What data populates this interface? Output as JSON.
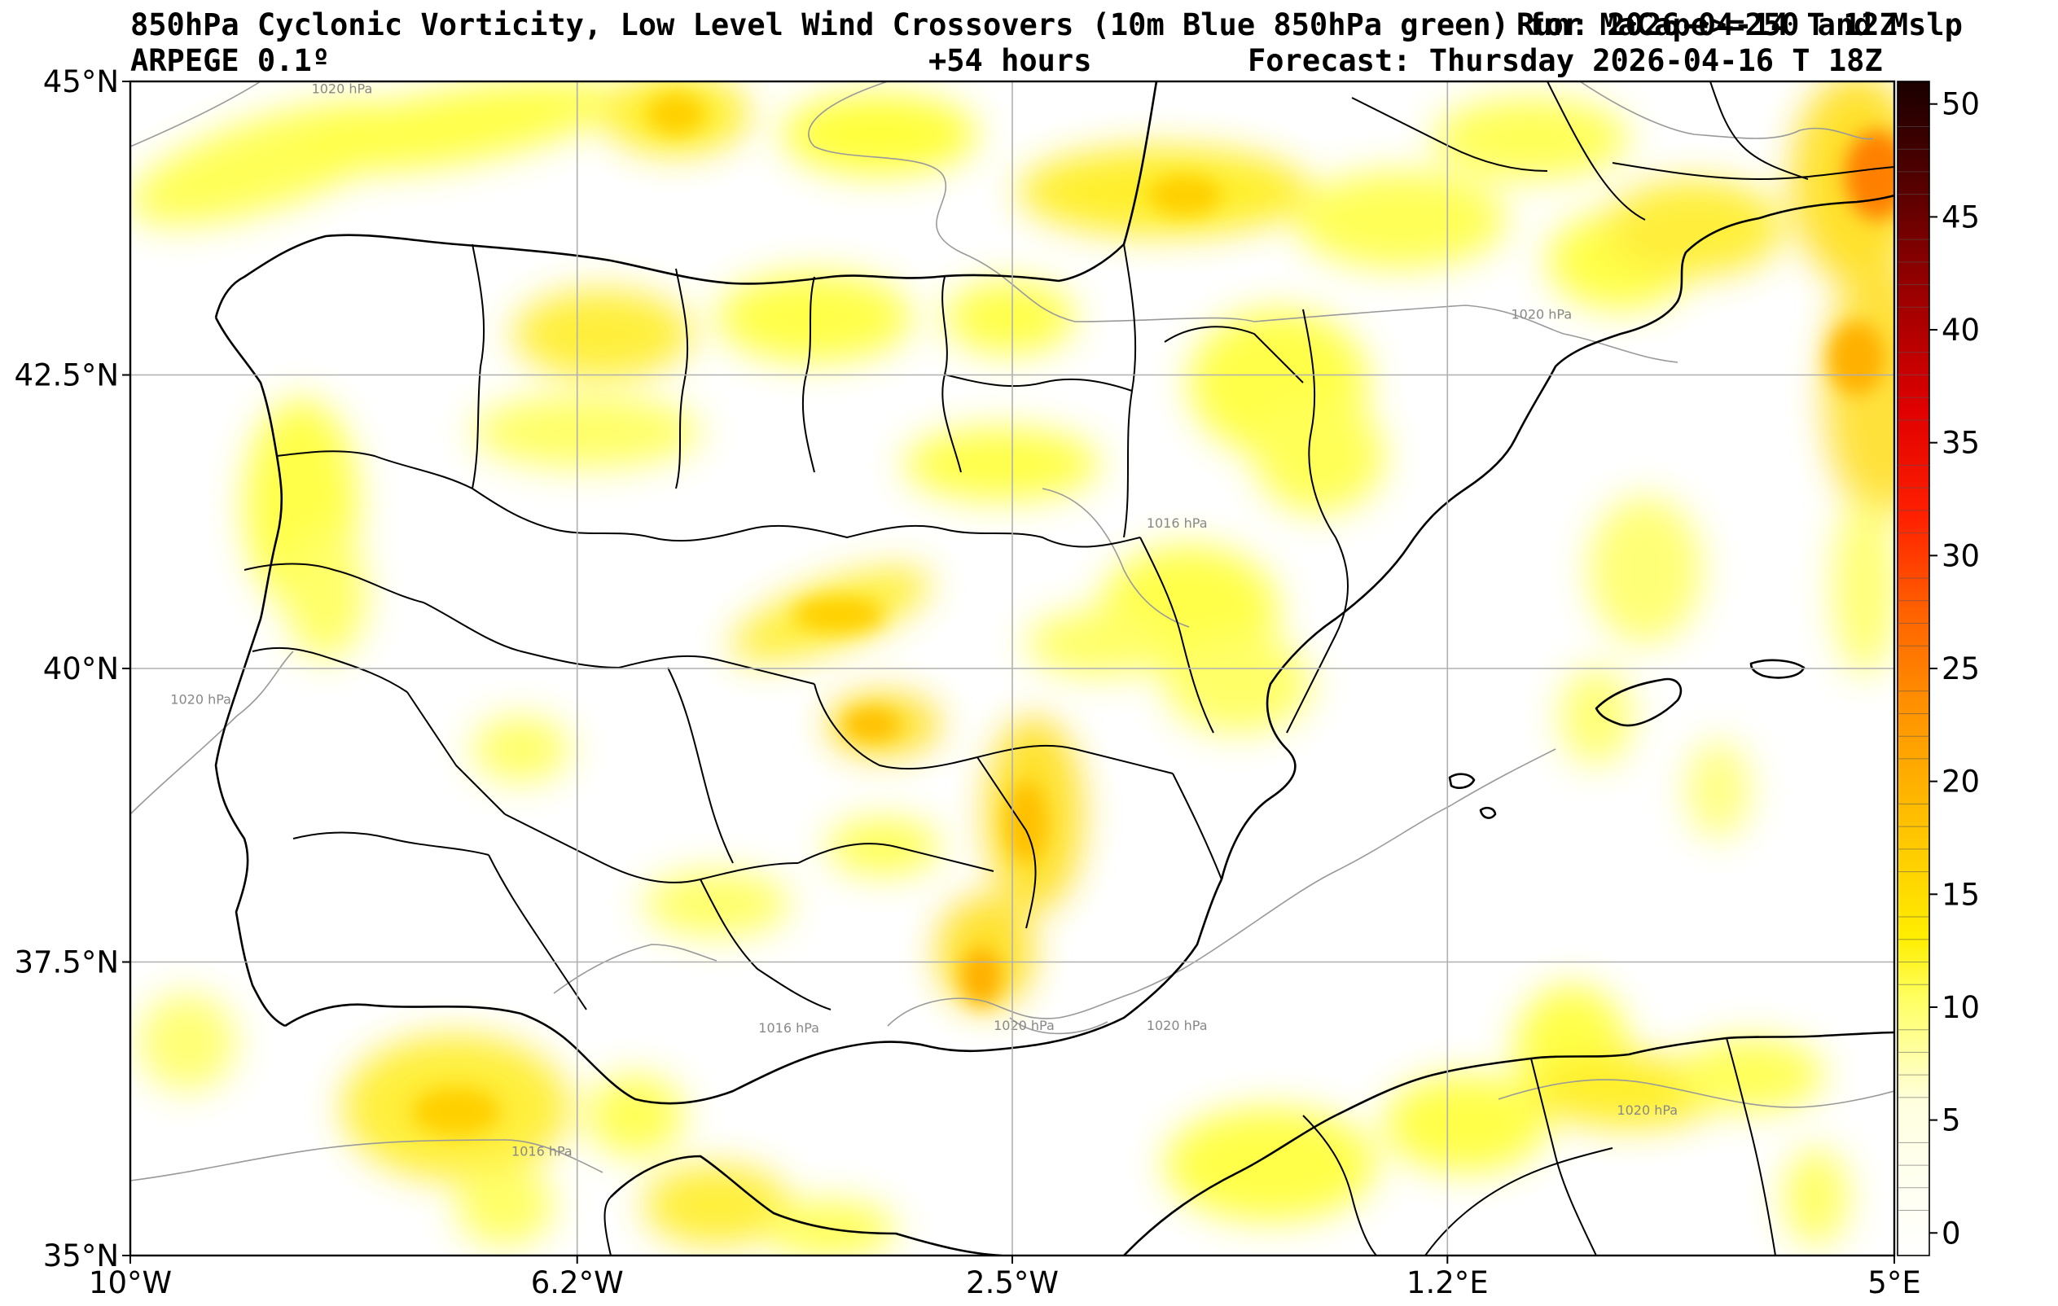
{
  "header": {
    "title": "850hPa Cyclonic Vorticity, Low Level Wind Crossovers (10m Blue 850hPa green) for MaCape>=250 and Mslp",
    "run": "Run: 2026-04-14 T 12Z",
    "model": "ARPEGE 0.1º",
    "lead": "+54 hours",
    "forecast": "Forecast: Thursday 2026-04-16 T 18Z"
  },
  "map": {
    "region": "Iberian Peninsula and Western Mediterranean",
    "lon_range": [
      -10,
      5
    ],
    "lat_range": [
      35,
      45
    ],
    "lat_ticks": [
      {
        "value": 45,
        "label": "45°N"
      },
      {
        "value": 42.5,
        "label": "42.5°N"
      },
      {
        "value": 40,
        "label": "40°N"
      },
      {
        "value": 37.5,
        "label": "37.5°N"
      },
      {
        "value": 35,
        "label": "35°N"
      }
    ],
    "lon_ticks": [
      {
        "value": -10,
        "label": "10°W"
      },
      {
        "value": -6.2,
        "label": "6.2°W"
      },
      {
        "value": -2.5,
        "label": "2.5°W"
      },
      {
        "value": 1.2,
        "label": "1.2°E"
      },
      {
        "value": 5,
        "label": "5°E"
      }
    ],
    "isobars": [
      {
        "label": "1020 hPa",
        "lon": -8.2,
        "lat": 44.9
      },
      {
        "label": "1020 hPa",
        "lon": 2.0,
        "lat": 42.98
      },
      {
        "label": "1016 hPa",
        "lon": -1.1,
        "lat": 41.2
      },
      {
        "label": "1020 hPa",
        "lon": -9.4,
        "lat": 39.7
      },
      {
        "label": "1016 hPa",
        "lon": -4.4,
        "lat": 36.9
      },
      {
        "label": "1020 hPa",
        "lon": -2.4,
        "lat": 36.92
      },
      {
        "label": "1020 hPa",
        "lon": -1.1,
        "lat": 36.92
      },
      {
        "label": "1020 hPa",
        "lon": 2.9,
        "lat": 36.2
      },
      {
        "label": "1016 hPa",
        "lon": -6.5,
        "lat": 35.85
      }
    ],
    "colors": {
      "land_outline": "#000000",
      "isobar": "#999999",
      "grid": "#b0b0b0",
      "vorticity_low": "#ffff00",
      "vorticity_high": "#ff0000"
    }
  },
  "colorbar": {
    "ticks": [
      "0",
      "5",
      "10",
      "15",
      "20",
      "25",
      "30",
      "35",
      "40",
      "45",
      "50"
    ],
    "min": -1,
    "max": 51
  }
}
